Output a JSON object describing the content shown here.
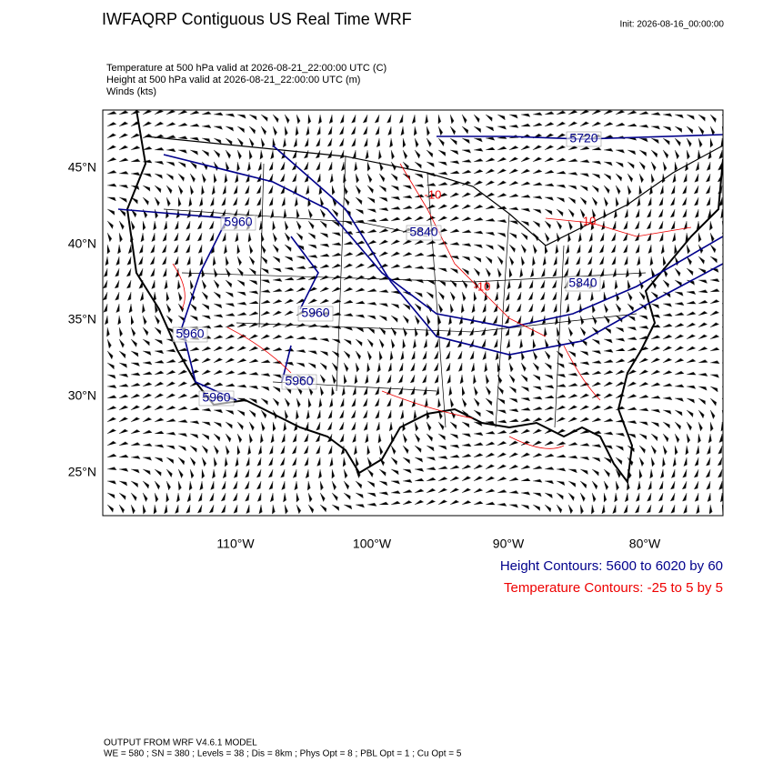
{
  "header": {
    "title": "IWFAQRP Contiguous US Real Time WRF",
    "init": "Init: 2026-08-16_00:00:00",
    "fields": [
      "Temperature at 500 hPa valid at 2026-08-21_22:00:00 UTC   (C)",
      "Height at 500 hPa valid at 2026-08-21_22:00:00 UTC   (m)",
      "Winds   (kts)"
    ]
  },
  "map": {
    "lat_labels": [
      "45°N",
      "40°N",
      "35°N",
      "30°N",
      "25°N"
    ],
    "lon_labels": [
      "110°W",
      "100°W",
      "90°W",
      "80°W"
    ],
    "height_labels": [
      "5720",
      "5840",
      "5840",
      "5960",
      "5960",
      "5960",
      "5960",
      "5960"
    ],
    "temperature_labels": [
      "-10",
      "-10",
      "-10"
    ]
  },
  "legend": {
    "height": "Height Contours: 5600 to 6020 by 60",
    "temperature": "Temperature Contours: -25 to 5 by 5"
  },
  "footer": [
    "OUTPUT FROM WRF V4.6.1 MODEL",
    "WE = 580 ; SN = 380 ; Levels = 38 ; Dis = 8km ; Phys Opt = 8 ; PBL Opt = 1 ; Cu Opt = 5"
  ]
}
